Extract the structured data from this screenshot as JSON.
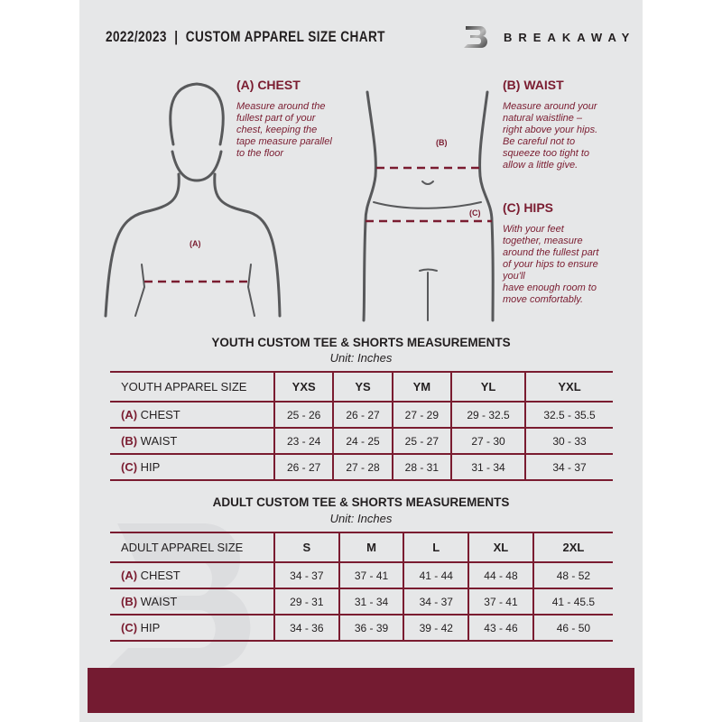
{
  "header": {
    "title": "2022/2023  |  CUSTOM APPAREL SIZE CHART",
    "brand": "BREAKAWAY",
    "logo_letter": "B"
  },
  "guide": {
    "chest": {
      "title": "(A) CHEST",
      "label": "(A)",
      "desc": [
        "Measure around the",
        "fullest part of your",
        "chest, keeping the",
        "tape measure parallel",
        "to the floor"
      ]
    },
    "waist": {
      "title": "(B) WAIST",
      "label": "(B)",
      "desc": [
        "Measure around your",
        "natural waistline –",
        "right above your hips.",
        "Be careful not to",
        "squeeze too tight to",
        "allow a little give."
      ]
    },
    "hips": {
      "title": "(C) HIPS",
      "label": "(C)",
      "desc": [
        "With your feet",
        "together, measure",
        "around the fullest part",
        "of your hips to ensure",
        "you'll",
        "have enough room to",
        "move comfortably."
      ]
    }
  },
  "youth": {
    "title": "YOUTH CUSTOM TEE & SHORTS MEASUREMENTS",
    "unit": "Unit: Inches",
    "header": "YOUTH APPAREL SIZE",
    "sizes": [
      "YXS",
      "YS",
      "YM",
      "YL",
      "YXL"
    ],
    "rows": [
      {
        "letter": "(A)",
        "name": "CHEST",
        "values": [
          "25 - 26",
          "26 - 27",
          "27 - 29",
          "29 - 32.5",
          "32.5 - 35.5"
        ]
      },
      {
        "letter": "(B)",
        "name": "WAIST",
        "values": [
          "23 - 24",
          "24 - 25",
          "25 - 27",
          "27 - 30",
          "30 - 33"
        ]
      },
      {
        "letter": "(C)",
        "name": "HIP",
        "values": [
          "26 - 27",
          "27 - 28",
          "28 - 31",
          "31 - 34",
          "34 - 37"
        ]
      }
    ]
  },
  "adult": {
    "title": "ADULT CUSTOM TEE & SHORTS MEASUREMENTS",
    "unit": "Unit: Inches",
    "header": "ADULT APPAREL SIZE",
    "sizes": [
      "S",
      "M",
      "L",
      "XL",
      "2XL"
    ],
    "rows": [
      {
        "letter": "(A)",
        "name": "CHEST",
        "values": [
          "34 - 37",
          "37 - 41",
          "41 - 44",
          "44 - 48",
          "48 - 52"
        ]
      },
      {
        "letter": "(B)",
        "name": "WAIST",
        "values": [
          "29 - 31",
          "31 - 34",
          "34 - 37",
          "37 - 41",
          "41 - 45.5"
        ]
      },
      {
        "letter": "(C)",
        "name": "HIP",
        "values": [
          "34 - 36",
          "36 - 39",
          "39 - 42",
          "43 - 46",
          "46 - 50"
        ]
      }
    ]
  },
  "colors": {
    "accent": "#7a1c30",
    "panel": "#e6e7e8",
    "text": "#231f20"
  }
}
